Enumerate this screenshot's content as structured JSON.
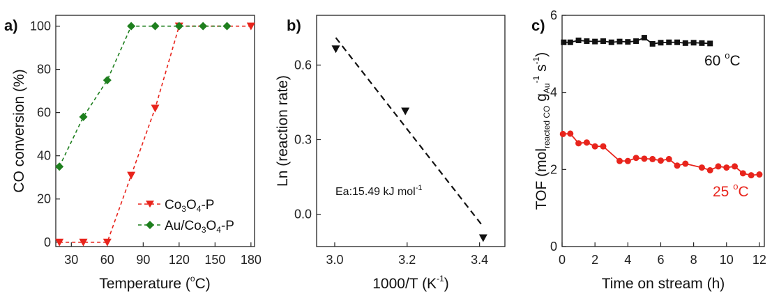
{
  "colors": {
    "co3o4": "#e8241c",
    "au_co3o4": "#1e7f1e",
    "black": "#111111",
    "red_25c": "#e8241c"
  },
  "chart_data": [
    {
      "panel": "a)",
      "type": "line",
      "xlabel_main": "Temperature (",
      "xlabel_sup": "o",
      "xlabel_unit": "C)",
      "ylabel": "CO conversion (%)",
      "xlim": [
        17,
        183
      ],
      "ylim": [
        -2,
        105
      ],
      "xticks": [
        30,
        60,
        90,
        120,
        150,
        180
      ],
      "yticks": [
        0,
        20,
        40,
        60,
        80,
        100
      ],
      "legend_placement": "bottom-right",
      "series": [
        {
          "key": "co3o4",
          "name": "Co3O4-P",
          "legend_parts": [
            "Co",
            "3",
            "O",
            "4",
            "-P"
          ],
          "marker": "triangle-down",
          "line": "dashed",
          "x": [
            20,
            40,
            60,
            80,
            100,
            120,
            180
          ],
          "y": [
            0,
            0,
            0,
            31,
            62,
            100,
            100
          ]
        },
        {
          "key": "au_co3o4",
          "name": "Au/Co3O4-P",
          "legend_parts": [
            "Au/Co",
            "3",
            "O",
            "4",
            "-P"
          ],
          "marker": "diamond",
          "line": "dashed",
          "x": [
            20,
            40,
            60,
            80,
            100,
            120,
            140,
            160
          ],
          "y": [
            35,
            58,
            75,
            100,
            100,
            100,
            100,
            100
          ]
        }
      ]
    },
    {
      "panel": "b)",
      "type": "scatter",
      "xlabel_main": "1000/T (K",
      "xlabel_sup": "-1",
      "xlabel_end": ")",
      "ylabel": "Ln (reaction rate)",
      "xlim": [
        2.95,
        3.47
      ],
      "ylim": [
        -0.13,
        0.8
      ],
      "xticks": [
        "3.0",
        "3.2",
        "3.4"
      ],
      "yticks": [
        "0.0",
        "0.3",
        "0.6"
      ],
      "annotation_main": "Ea:15.49 kJ mol",
      "annotation_sup": "-1",
      "points": {
        "marker": "triangle-down",
        "x": [
          3.003,
          3.195,
          3.41
        ],
        "y": [
          0.665,
          0.415,
          -0.095
        ]
      },
      "fit_line": {
        "style": "dashed",
        "x": [
          3.003,
          3.41
        ],
        "y": [
          0.71,
          -0.05
        ]
      }
    },
    {
      "panel": "c)",
      "type": "line",
      "xlabel": "Time on stream (h)",
      "ylabel_parts": {
        "a": "TOF (mol",
        "b": "reacted CO",
        "c": " g",
        "d": "Au",
        "e": "-1",
        "f": " s",
        "g": "-1",
        "h": ")"
      },
      "xlim": [
        0,
        12.3
      ],
      "ylim": [
        0,
        6
      ],
      "xticks": [
        0,
        2,
        4,
        6,
        8,
        10,
        12
      ],
      "yticks": [
        0,
        2,
        4,
        6
      ],
      "series": [
        {
          "key": "black",
          "label_main": "60 ",
          "label_sup": "o",
          "label_end": "C",
          "marker": "square",
          "x": [
            0.1,
            0.5,
            1,
            1.5,
            2,
            2.5,
            3,
            3.5,
            4,
            4.5,
            5,
            5.5,
            6,
            6.5,
            7,
            7.5,
            8,
            8.5,
            9
          ],
          "y": [
            5.3,
            5.3,
            5.35,
            5.33,
            5.32,
            5.33,
            5.3,
            5.32,
            5.31,
            5.33,
            5.42,
            5.26,
            5.29,
            5.3,
            5.3,
            5.28,
            5.29,
            5.28,
            5.27
          ]
        },
        {
          "key": "red_25c",
          "label_main": "25 ",
          "label_sup": "o",
          "label_end": "C",
          "marker": "circle",
          "x": [
            0.05,
            0.5,
            1,
            1.5,
            2,
            2.5,
            3.5,
            4,
            4.5,
            5,
            5.5,
            6,
            6.5,
            7,
            7.5,
            8.5,
            9,
            9.5,
            10,
            10.5,
            11,
            11.5,
            12
          ],
          "y": [
            2.92,
            2.93,
            2.68,
            2.7,
            2.6,
            2.6,
            2.22,
            2.22,
            2.3,
            2.28,
            2.27,
            2.23,
            2.27,
            2.1,
            2.15,
            2.05,
            1.98,
            2.08,
            2.05,
            2.08,
            1.9,
            1.85,
            1.87
          ]
        }
      ]
    }
  ]
}
